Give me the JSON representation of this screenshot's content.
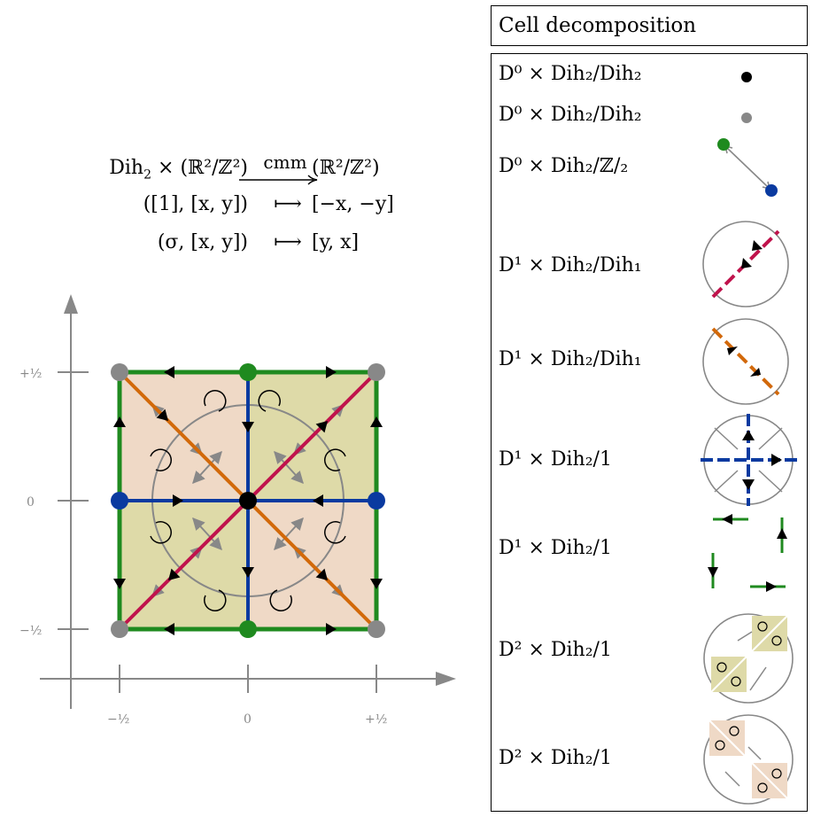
{
  "action": {
    "group": "Dih",
    "group_sub": "2",
    "times": "×",
    "space": "(ℝ²/ℤ²)",
    "arrow_label": "cmm",
    "target": "(ℝ²/ℤ²)",
    "rows": [
      {
        "lhs": "([1], [x, y])",
        "map": "⟼",
        "rhs": "[−x, −y]"
      },
      {
        "lhs": "(σ, [x, y])",
        "map": "⟼",
        "rhs": "[y, x]"
      }
    ]
  },
  "axes": {
    "x_ticks": [
      "−½",
      "0",
      "+½"
    ],
    "y_ticks": [
      "+½",
      "0",
      "−½"
    ]
  },
  "colors": {
    "green": "#1f8a1f",
    "blue": "#0a3aa0",
    "crimson": "#c0134c",
    "orange": "#d2690a",
    "gray": "#888888",
    "peach": "#efd9c6",
    "olive": "#dedaa8"
  },
  "legend": {
    "title": "Cell decomposition",
    "rows": [
      {
        "text": "D⁰ × Dih₂/Dih₂",
        "icon": "black-dot-icon"
      },
      {
        "text": "D⁰ × Dih₂/Dih₂",
        "icon": "gray-dot-icon"
      },
      {
        "text": "D⁰ × Dih₂/ℤ/₂",
        "icon": "green-blue-dots-icon"
      },
      {
        "text": "D¹ × Dih₂/Dih₁",
        "icon": "crimson-diagonal-icon"
      },
      {
        "text": "D¹ × Dih₂/Dih₁",
        "icon": "orange-diagonal-icon"
      },
      {
        "text": "D¹ × Dih₂/1",
        "icon": "blue-cross-icon"
      },
      {
        "text": "D¹ × Dih₂/1",
        "icon": "green-edges-icon"
      },
      {
        "text": "D² × Dih₂/1",
        "icon": "olive-squares-icon"
      },
      {
        "text": "D² × Dih₂/1",
        "icon": "peach-squares-icon"
      }
    ]
  }
}
